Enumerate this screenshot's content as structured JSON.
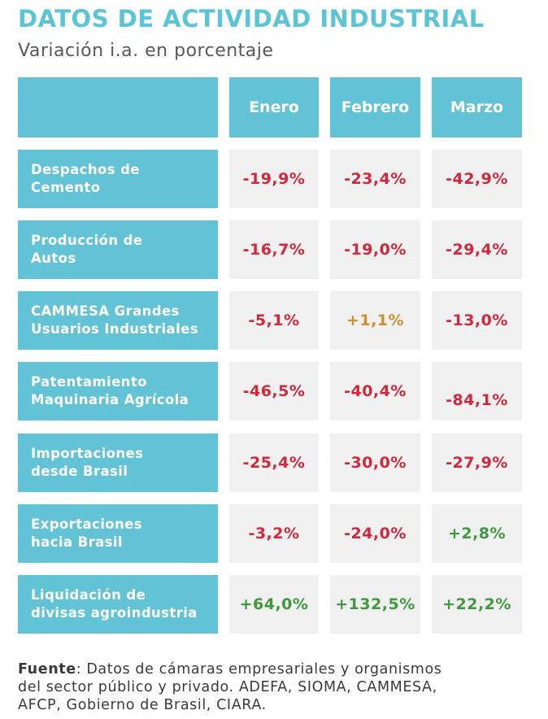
{
  "title": "DATOS DE ACTIVIDAD INDUSTRIAL",
  "subtitle": "Variación i.a. en porcentaje",
  "columns": [
    "Enero",
    "Febrero",
    "Marzo"
  ],
  "rows": [
    {
      "label_line1": "Despachos de",
      "label_line2": "Cemento",
      "values": [
        "-19,9%",
        "-23,4%",
        "-42,9%"
      ]
    },
    {
      "label_line1": "Producción de",
      "label_line2": "Autos",
      "values": [
        "-16,7%",
        "-19,0%",
        "-29,4%"
      ]
    },
    {
      "label_line1": "CAMMESA Grandes",
      "label_line2": "Usuarios Industriales",
      "values": [
        "-5,1%",
        "+1,1%",
        "-13,0%"
      ]
    },
    {
      "label_line1": "Patentamiento",
      "label_line2": "Maquinaria Agrícola",
      "values": [
        "-46,5%",
        "-40,4%",
        "-84,1%"
      ]
    },
    {
      "label_line1": "Importaciones",
      "label_line2": "desde Brasil",
      "values": [
        "-25,4%",
        "-30,0%",
        "-27,9%"
      ]
    },
    {
      "label_line1": "Exportaciones",
      "label_line2": "hacia Brasil",
      "values": [
        "-3,2%",
        "-24,0%",
        "+2,8%"
      ]
    },
    {
      "label_line1": "Liquidación de",
      "label_line2": "divisas agroindustria",
      "values": [
        "+64,0%",
        "+132,5%",
        "+22,2%"
      ]
    }
  ],
  "colors": {
    "header_blue": "#62c3d6",
    "title_blue": "#5bc4d6",
    "negative_red": "#d2283c",
    "positive_green": "#3f9a3f",
    "positive_amber": "#cf8f2d",
    "value_cell_grey": "#f0f0f0"
  },
  "footer": {
    "label": "Fuente",
    "line1": ": Datos de cámaras empresariales y organismos",
    "line2": "del sector público y privado. ADEFA, SIOMA, CAMMESA,",
    "line3": "AFCP, Gobierno de Brasil, CIARA."
  }
}
